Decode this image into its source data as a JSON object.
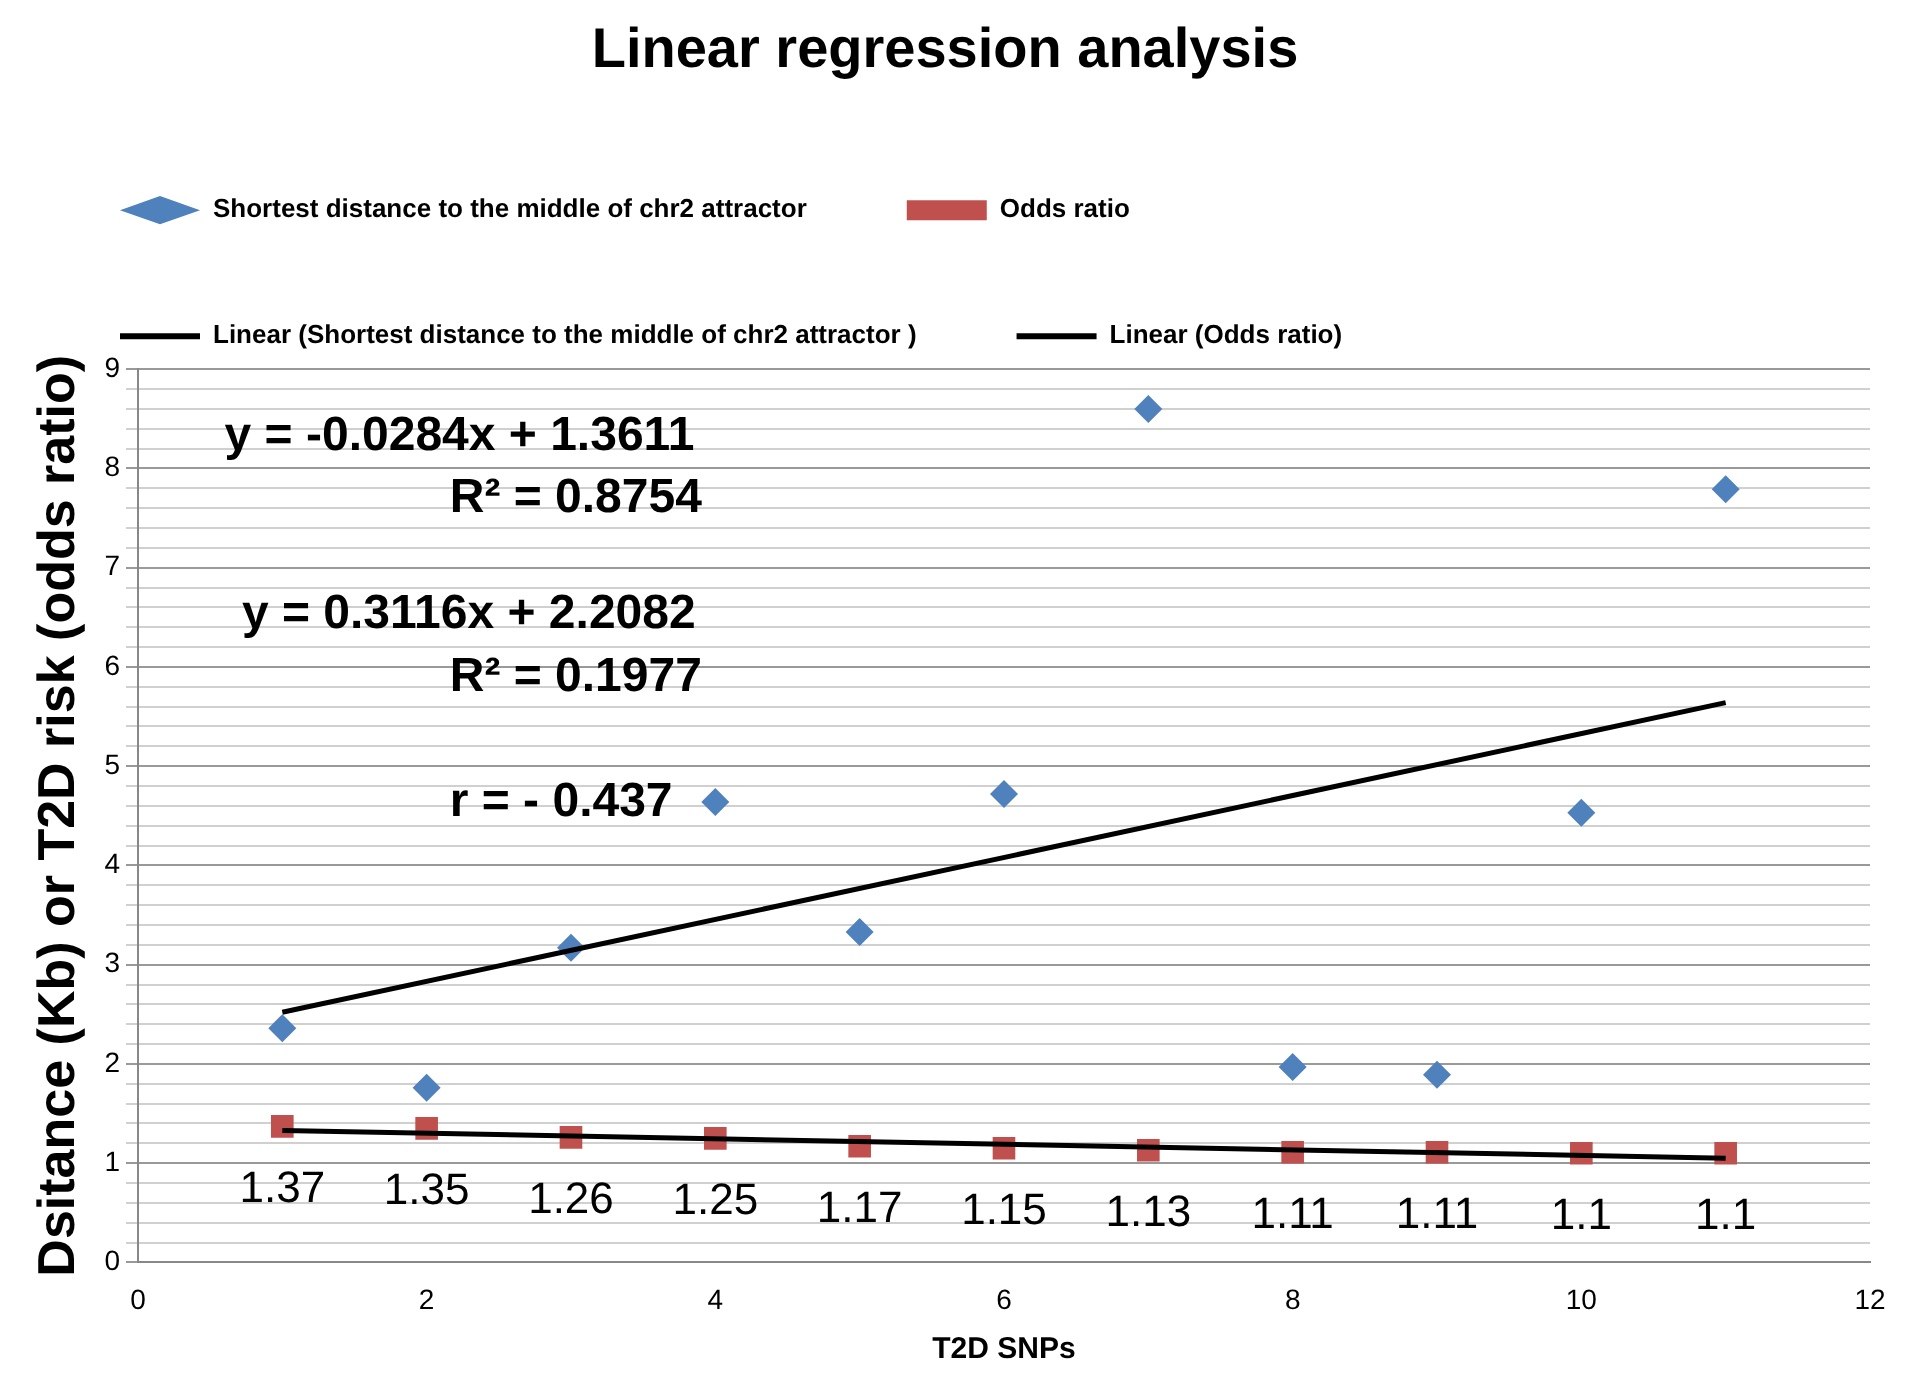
{
  "chart_data": {
    "type": "scatter",
    "title": "Linear regression analysis",
    "xlabel": "T2D SNPs",
    "ylabel": "Dsitance (Kb) or T2D risk (odds ratio)",
    "series": [
      {
        "name": "Shortest distance to the middle of chr2 attractor",
        "type": "scatter",
        "marker": "diamond",
        "color": "#4f81bd",
        "x": [
          1,
          2,
          3,
          4,
          5,
          6,
          7,
          8,
          9,
          10,
          11
        ],
        "values": [
          2.36,
          1.76,
          3.17,
          4.64,
          3.33,
          4.72,
          8.6,
          1.97,
          1.89,
          4.53,
          7.79
        ]
      },
      {
        "name": "Odds ratio",
        "type": "scatter",
        "marker": "square",
        "color": "#c0504d",
        "x": [
          1,
          2,
          3,
          4,
          5,
          6,
          7,
          8,
          9,
          10,
          11
        ],
        "values": [
          1.37,
          1.35,
          1.26,
          1.25,
          1.17,
          1.15,
          1.13,
          1.11,
          1.11,
          1.1,
          1.1
        ],
        "value_labels": [
          "1.37",
          "1.35",
          "1.26",
          "1.25",
          "1.17",
          "1.15",
          "1.13",
          "1.11",
          "1.11",
          "1.1",
          "1.1"
        ]
      },
      {
        "name": "Linear (Shortest distance to the middle of chr2 attractor )",
        "type": "line",
        "marker": "none",
        "color": "#000000",
        "x": [
          1,
          11
        ],
        "values": [
          2.52,
          5.64
        ]
      },
      {
        "name": "Linear (Odds ratio)",
        "type": "line",
        "marker": "none",
        "color": "#000000",
        "x": [
          1,
          11
        ],
        "values": [
          1.33,
          1.05
        ]
      }
    ],
    "annotations": [
      "y = -0.0284x + 1.3611",
      "R² = 0.8754",
      "y = 0.3116x + 2.2082",
      "R² = 0.1977",
      "r = - 0.437"
    ],
    "xlim": [
      0,
      12
    ],
    "xticks": [
      0,
      2,
      4,
      6,
      8,
      10,
      12
    ],
    "ylim": [
      0,
      9
    ],
    "yticks": [
      0,
      {
        "value": 0.2,
        "label": null
      },
      {
        "value": 0.4,
        "label": null
      },
      {
        "value": 0.6,
        "label": null
      },
      {
        "value": 0.8,
        "label": null
      },
      1,
      {
        "value": 1.2,
        "label": null
      },
      {
        "value": 1.4,
        "label": null
      },
      {
        "value": 1.6,
        "label": null
      },
      {
        "value": 1.8,
        "label": null
      },
      2,
      {
        "value": 2.2,
        "label": null
      },
      {
        "value": 2.4,
        "label": null
      },
      {
        "value": 2.6,
        "label": null
      },
      {
        "value": 2.8,
        "label": null
      },
      3,
      {
        "value": 3.2,
        "label": null
      },
      {
        "value": 3.4,
        "label": null
      },
      {
        "value": 3.6,
        "label": null
      },
      {
        "value": 3.8,
        "label": null
      },
      4,
      {
        "value": 4.2,
        "label": null
      },
      {
        "value": 4.4,
        "label": null
      },
      {
        "value": 4.6,
        "label": null
      },
      {
        "value": 4.8,
        "label": null
      },
      5,
      {
        "value": 5.2,
        "label": null
      },
      {
        "value": 5.4,
        "label": null
      },
      {
        "value": 5.6,
        "label": null
      },
      {
        "value": 5.8,
        "label": null
      },
      6,
      {
        "value": 6.2,
        "label": null
      },
      {
        "value": 6.4,
        "label": null
      },
      {
        "value": 6.6,
        "label": null
      },
      {
        "value": 6.8,
        "label": null
      },
      7,
      {
        "value": 7.2,
        "label": null
      },
      {
        "value": 7.4,
        "label": null
      },
      {
        "value": 7.6,
        "label": null
      },
      {
        "value": 7.8,
        "label": null
      },
      8,
      {
        "value": 8.2,
        "label": null
      },
      {
        "value": 8.4,
        "label": null
      },
      {
        "value": 8.6,
        "label": null
      },
      {
        "value": 8.8,
        "label": null
      },
      9
    ],
    "grid": "y",
    "legend": "top"
  }
}
